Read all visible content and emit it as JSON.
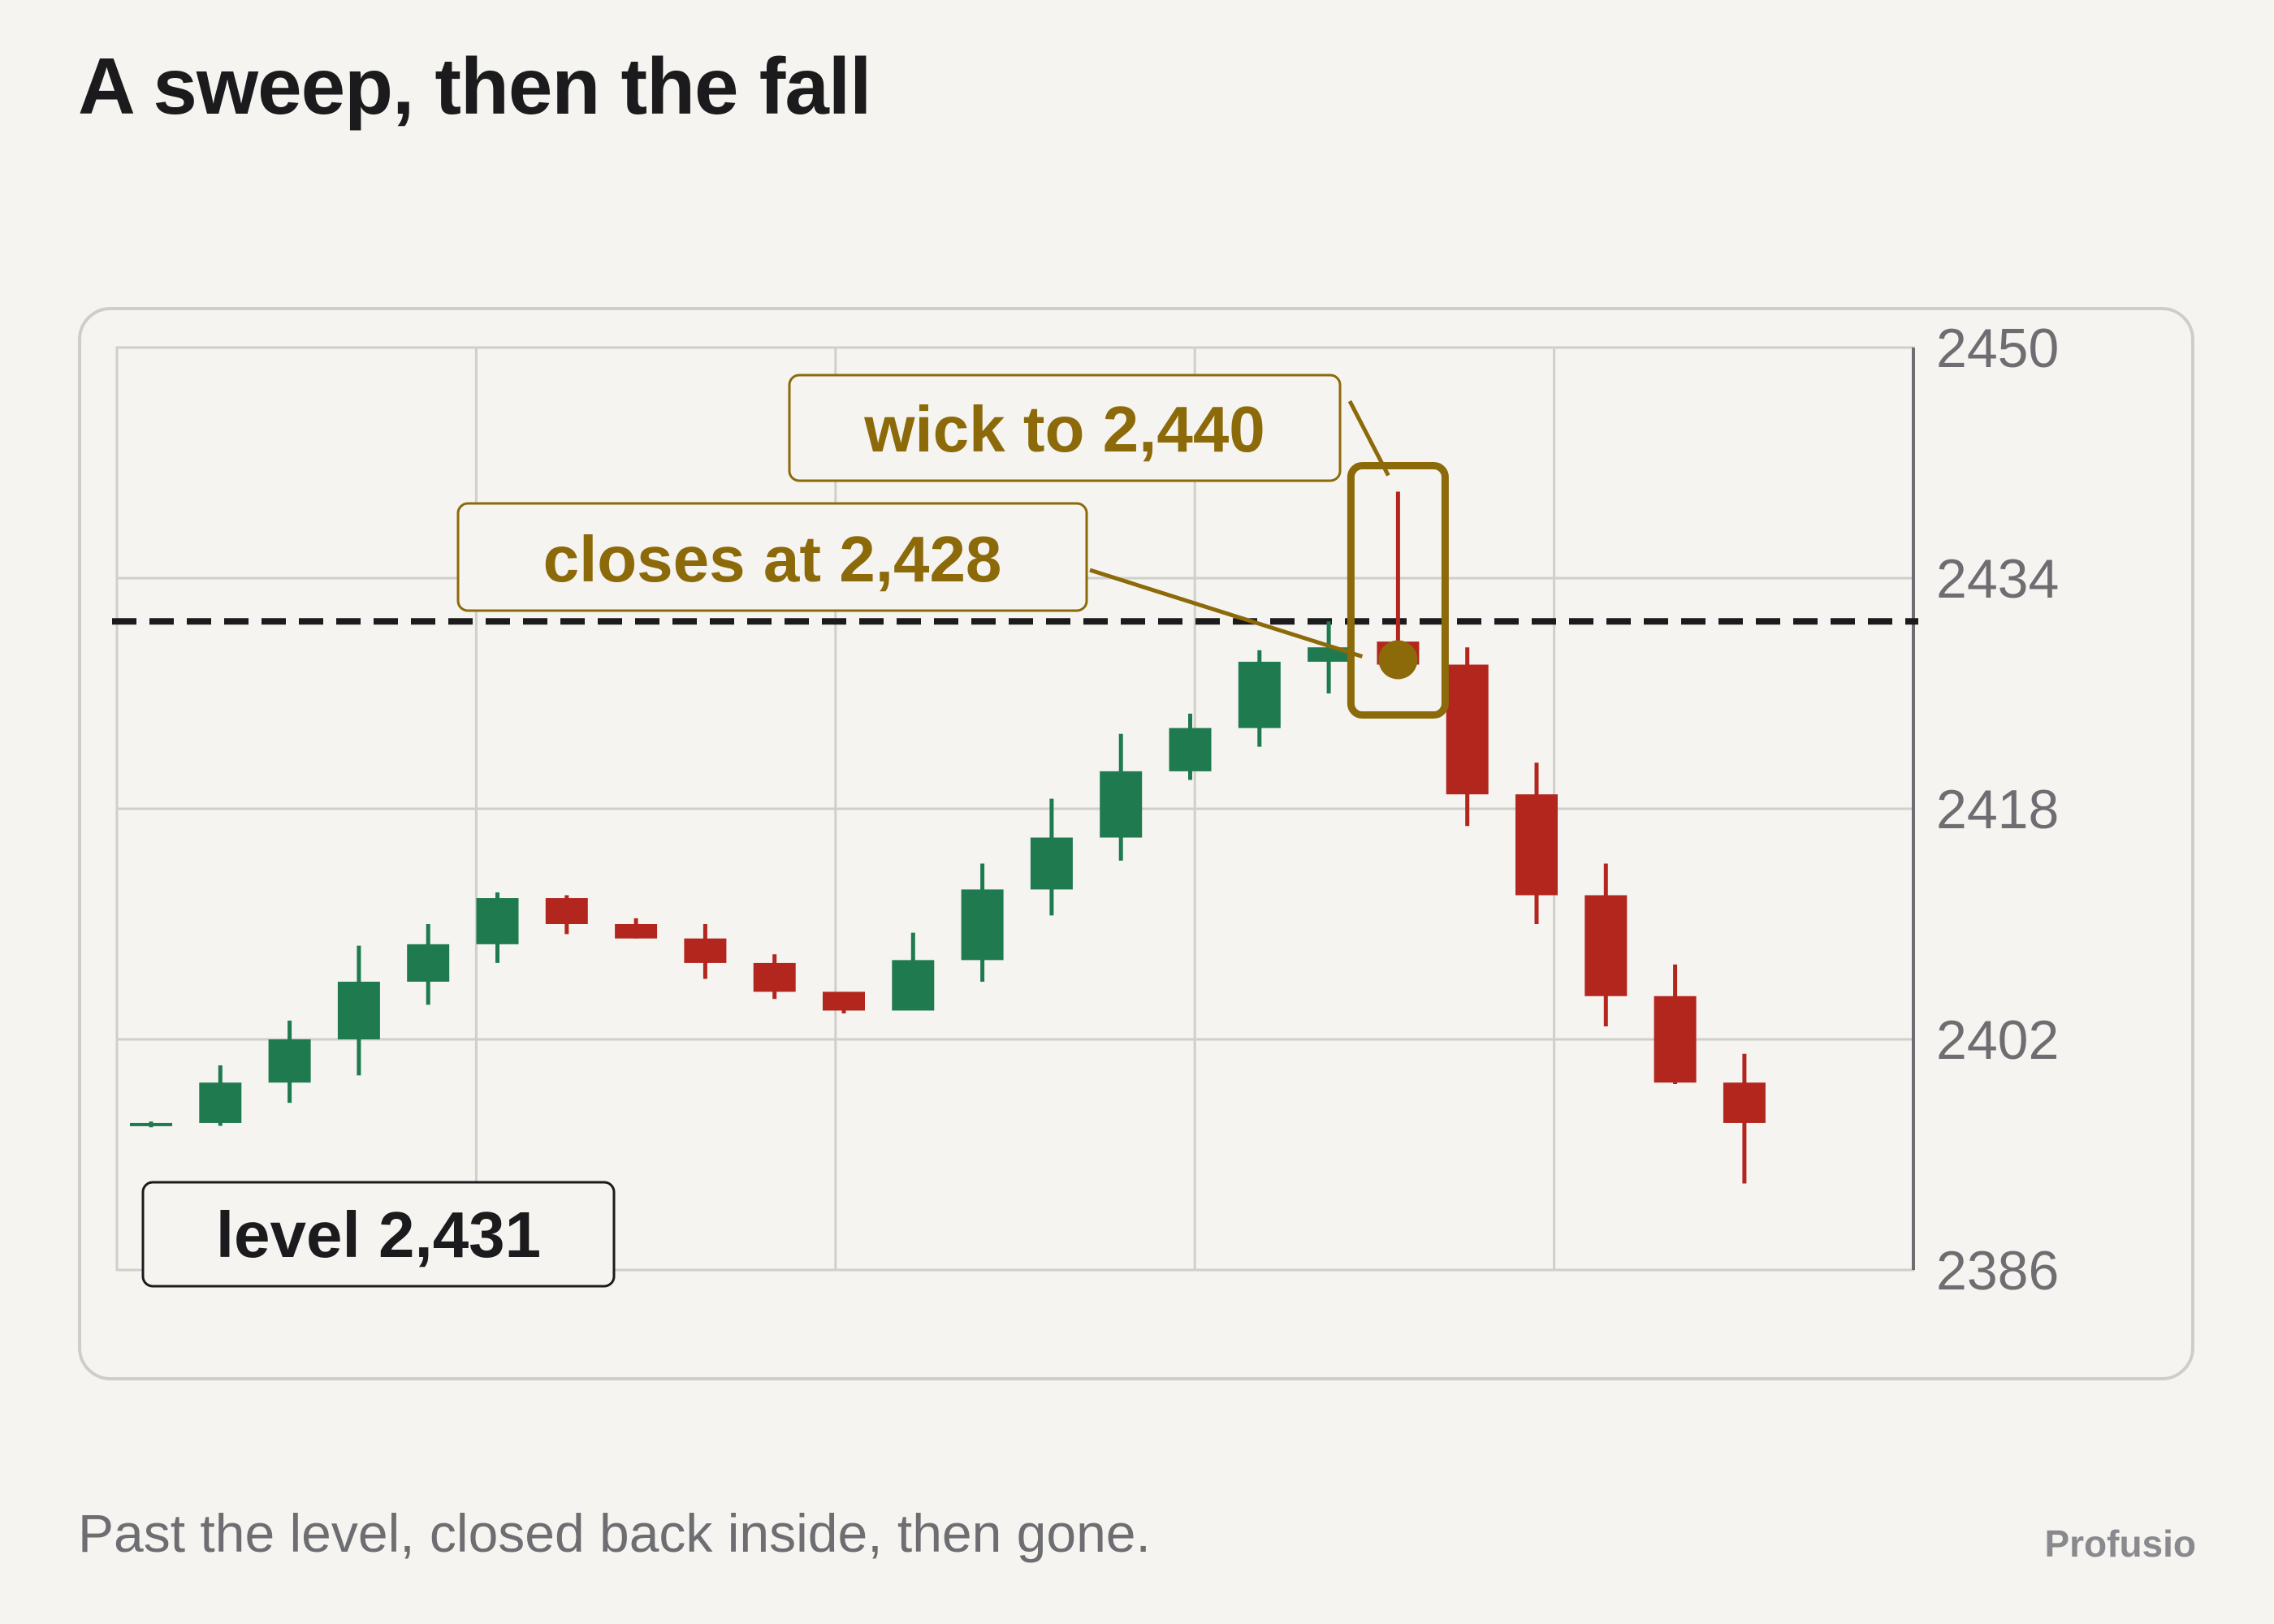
{
  "title": "A sweep, then the fall",
  "subtitle": "Past the level, closed back inside, then gone.",
  "brand": "Profusio",
  "colors": {
    "up": "#1f7a4f",
    "down": "#b3261e",
    "annotation": "#8c6a0a",
    "level_line": "#1b1b1d",
    "grid": "#d0cfca",
    "axis": "#6e6e72"
  },
  "chart_data": {
    "type": "candlestick",
    "ylim": [
      2386,
      2450
    ],
    "yticks": [
      2450,
      2434,
      2418,
      2402,
      2386
    ],
    "grid": true,
    "candles": [
      {
        "o": 2396.1,
        "h": 2396.3,
        "l": 2395.9,
        "c": 2396.2
      },
      {
        "o": 2396.2,
        "h": 2400.2,
        "l": 2396.0,
        "c": 2399.0
      },
      {
        "o": 2399.0,
        "h": 2403.3,
        "l": 2397.6,
        "c": 2402.0
      },
      {
        "o": 2402.0,
        "h": 2408.5,
        "l": 2399.5,
        "c": 2406.0
      },
      {
        "o": 2406.0,
        "h": 2410.0,
        "l": 2404.4,
        "c": 2408.6
      },
      {
        "o": 2408.6,
        "h": 2412.2,
        "l": 2407.3,
        "c": 2411.8
      },
      {
        "o": 2411.8,
        "h": 2412.0,
        "l": 2409.3,
        "c": 2410.0
      },
      {
        "o": 2410.0,
        "h": 2410.4,
        "l": 2409.0,
        "c": 2409.0
      },
      {
        "o": 2409.0,
        "h": 2410.0,
        "l": 2406.2,
        "c": 2407.3
      },
      {
        "o": 2407.3,
        "h": 2407.9,
        "l": 2404.8,
        "c": 2405.3
      },
      {
        "o": 2405.3,
        "h": 2405.3,
        "l": 2403.8,
        "c": 2404.0
      },
      {
        "o": 2404.0,
        "h": 2409.4,
        "l": 2404.0,
        "c": 2407.5
      },
      {
        "o": 2407.5,
        "h": 2414.2,
        "l": 2406.0,
        "c": 2412.4
      },
      {
        "o": 2412.4,
        "h": 2418.7,
        "l": 2410.6,
        "c": 2416.0
      },
      {
        "o": 2416.0,
        "h": 2423.2,
        "l": 2414.4,
        "c": 2420.6
      },
      {
        "o": 2420.6,
        "h": 2424.6,
        "l": 2420.0,
        "c": 2423.6
      },
      {
        "o": 2423.6,
        "h": 2429.0,
        "l": 2422.3,
        "c": 2428.2
      },
      {
        "o": 2428.2,
        "h": 2431.0,
        "l": 2426.0,
        "c": 2429.2
      },
      {
        "o": 2429.6,
        "h": 2440.0,
        "l": 2428.0,
        "c": 2428.0
      },
      {
        "o": 2428.0,
        "h": 2429.2,
        "l": 2416.8,
        "c": 2419.0
      },
      {
        "o": 2419.0,
        "h": 2421.2,
        "l": 2410.0,
        "c": 2412.0
      },
      {
        "o": 2412.0,
        "h": 2414.2,
        "l": 2402.9,
        "c": 2405.0
      },
      {
        "o": 2405.0,
        "h": 2407.2,
        "l": 2398.9,
        "c": 2399.0
      },
      {
        "o": 2399.0,
        "h": 2401.0,
        "l": 2392.0,
        "c": 2396.2
      }
    ],
    "level": {
      "value": 2431,
      "label": "level 2,431"
    },
    "annotations": [
      {
        "text": "wick to 2,440",
        "candle_index": 18,
        "value": 2440
      },
      {
        "text": "closes at 2,428",
        "candle_index": 18,
        "value": 2428
      }
    ]
  }
}
